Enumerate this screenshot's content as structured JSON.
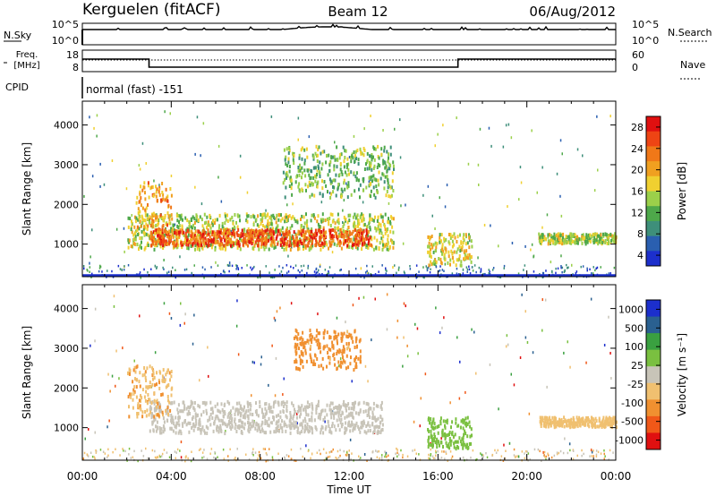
{
  "header": {
    "station": "Kerguelen (fitACF)",
    "beam": "Beam 12",
    "date": "06/Aug/2012"
  },
  "status_panels": {
    "nsky_label": "N.Sky",
    "nsearch_label": "N.Search",
    "freq_label_top": "Freq.",
    "freq_label_bottom": "[MHz]",
    "nave_label": "Nave",
    "cpid_label": "CPID",
    "cpid_value": "normal (fast) -151",
    "left_ticks_top": [
      "10^5",
      "10^0"
    ],
    "right_ticks_top": [
      "10^5",
      "10^0"
    ],
    "left_ticks_freq": [
      "18",
      "8"
    ],
    "right_ticks_nave": [
      "60",
      "0"
    ]
  },
  "chart_data": [
    {
      "type": "heatmap",
      "title": "",
      "ylabel": "Slant Range [km]",
      "ylim": [
        180,
        4600
      ],
      "yticks": [
        "4000",
        "3000",
        "2000",
        "1000"
      ],
      "colorbar": {
        "label": "Power [dB]",
        "ticks": [
          "28",
          "24",
          "20",
          "16",
          "12",
          "8",
          "4"
        ],
        "range": [
          0,
          30
        ],
        "colors": [
          "#1c2fcc",
          "#2a5fb0",
          "#3e8f7a",
          "#4ea84a",
          "#9bd04a",
          "#f0d030",
          "#f0a020",
          "#f07818",
          "#ee4414",
          "#e01010"
        ]
      },
      "echo_regions": [
        {
          "t_start": 2.0,
          "t_end": 14.0,
          "r_min": 900,
          "r_max": 1800,
          "power": 14
        },
        {
          "t_start": 3.0,
          "t_end": 13.0,
          "r_min": 1000,
          "r_max": 1400,
          "power": 24
        },
        {
          "t_start": 2.4,
          "t_end": 4.0,
          "r_min": 1300,
          "r_max": 2600,
          "power": 20
        },
        {
          "t_start": 9.0,
          "t_end": 14.0,
          "r_min": 2200,
          "r_max": 3500,
          "power": 12
        },
        {
          "t_start": 15.5,
          "t_end": 17.5,
          "r_min": 500,
          "r_max": 1300,
          "power": 16
        },
        {
          "t_start": 20.5,
          "t_end": 24.0,
          "r_min": 1050,
          "r_max": 1300,
          "power": 14
        }
      ]
    },
    {
      "type": "heatmap",
      "title": "",
      "ylabel": "Slant Range [km]",
      "ylim": [
        180,
        4600
      ],
      "yticks": [
        "4000",
        "3000",
        "2000",
        "1000"
      ],
      "xlabel": "Time UT",
      "xticks": [
        "00:00",
        "04:00",
        "08:00",
        "12:00",
        "16:00",
        "20:00",
        "00:00"
      ],
      "xlim": [
        0,
        24
      ],
      "colorbar": {
        "label": "Velocity [m s⁻¹]",
        "ticks": [
          "1000",
          "500",
          "100",
          "25",
          "-25",
          "-100",
          "-500",
          "-1000"
        ],
        "range": [
          -1000,
          1000
        ],
        "colors": [
          "#e01010",
          "#f05818",
          "#f09030",
          "#f0c070",
          "#c8c4b8",
          "#7ac040",
          "#3aa040",
          "#2a6090",
          "#1c2fcc"
        ]
      },
      "echo_regions": [
        {
          "t_start": 3.0,
          "t_end": 13.5,
          "r_min": 900,
          "r_max": 1700,
          "velocity": 0
        },
        {
          "t_start": 2.0,
          "t_end": 4.0,
          "r_min": 1300,
          "r_max": 2600,
          "velocity": -300
        },
        {
          "t_start": 9.5,
          "t_end": 12.5,
          "r_min": 2500,
          "r_max": 3500,
          "velocity": -400
        },
        {
          "t_start": 15.5,
          "t_end": 17.5,
          "r_min": 500,
          "r_max": 1300,
          "velocity": 200
        },
        {
          "t_start": 20.5,
          "t_end": 24.0,
          "r_min": 1050,
          "r_max": 1300,
          "velocity": -200
        }
      ]
    }
  ]
}
